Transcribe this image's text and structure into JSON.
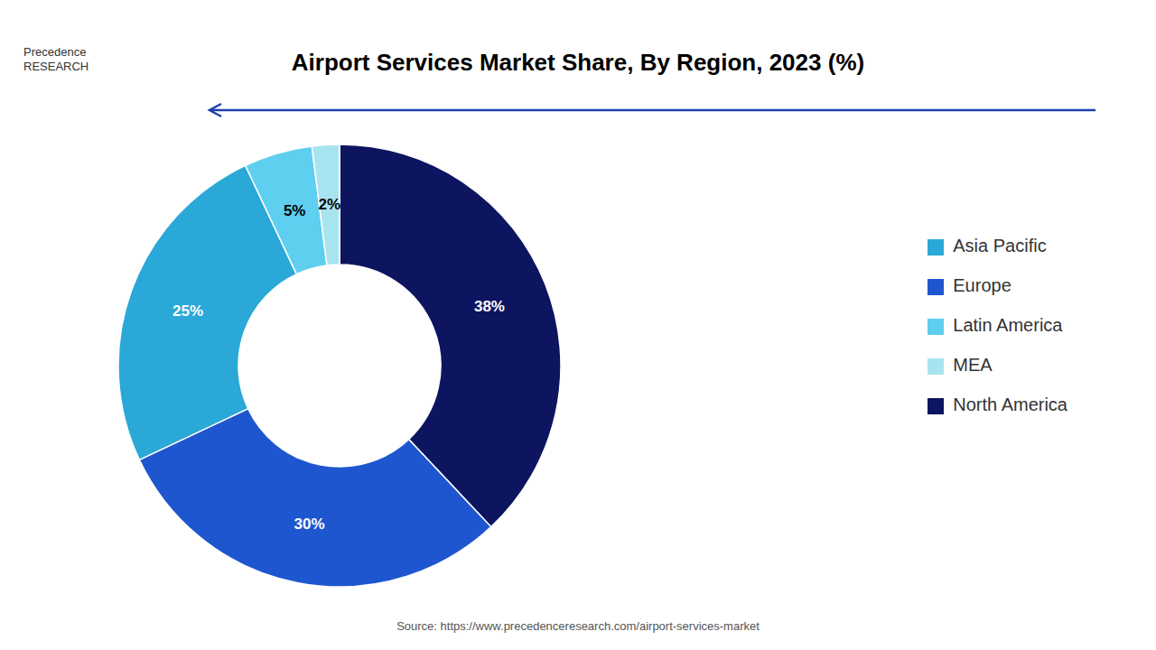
{
  "chart_data": {
    "type": "pie",
    "title": "Airport Services Market Share, By Region, 2023 (%)",
    "categories": [
      "North America",
      "Europe",
      "Asia Pacific",
      "Latin America",
      "MEA"
    ],
    "values": [
      38,
      30,
      25,
      5,
      2
    ],
    "value_labels": [
      "38%",
      "30%",
      "25%",
      "5%",
      "2%"
    ],
    "colors": [
      "#0d1560",
      "#1e56d0",
      "#2aa8d8",
      "#5ecfef",
      "#a8e4f0"
    ],
    "data_labels": true,
    "legend": "right",
    "annotations": [
      "Precedence\nRESEARCH",
      "Source: https://www.precedenceresearch.com/airport-services-market"
    ]
  }
}
